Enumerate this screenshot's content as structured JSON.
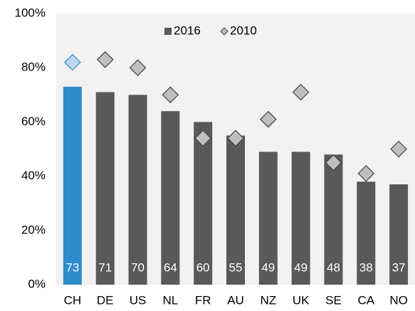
{
  "chart_data": {
    "type": "bar",
    "categories": [
      "CH",
      "DE",
      "US",
      "NL",
      "FR",
      "AU",
      "NZ",
      "UK",
      "SE",
      "CA",
      "NO"
    ],
    "series": [
      {
        "name": "2016",
        "type": "bar",
        "color": "#595959",
        "colors": [
          "#2e8bcc",
          "#595959",
          "#595959",
          "#595959",
          "#595959",
          "#595959",
          "#595959",
          "#595959",
          "#595959",
          "#595959",
          "#595959"
        ],
        "values": [
          73,
          71,
          70,
          64,
          60,
          55,
          49,
          49,
          48,
          38,
          37
        ]
      },
      {
        "name": "2010",
        "type": "marker",
        "marker": "diamond",
        "color": "#bfbfbf",
        "colors": [
          "#bdd7ee",
          "#bfbfbf",
          "#bfbfbf",
          "#bfbfbf",
          "#bfbfbf",
          "#bfbfbf",
          "#bfbfbf",
          "#bfbfbf",
          "#bfbfbf",
          "#bfbfbf",
          "#bfbfbf"
        ],
        "values": [
          82,
          83,
          80,
          70,
          54,
          54,
          61,
          71,
          45,
          41,
          50
        ]
      }
    ],
    "ylim": [
      0,
      100
    ],
    "yticks": [
      {
        "value": 0,
        "label": "0%"
      },
      {
        "value": 20,
        "label": "20%"
      },
      {
        "value": 40,
        "label": "40%"
      },
      {
        "value": 60,
        "label": "60%"
      },
      {
        "value": 80,
        "label": "80%"
      },
      {
        "value": 100,
        "label": "100%"
      }
    ],
    "grid": false,
    "legend": "top"
  }
}
